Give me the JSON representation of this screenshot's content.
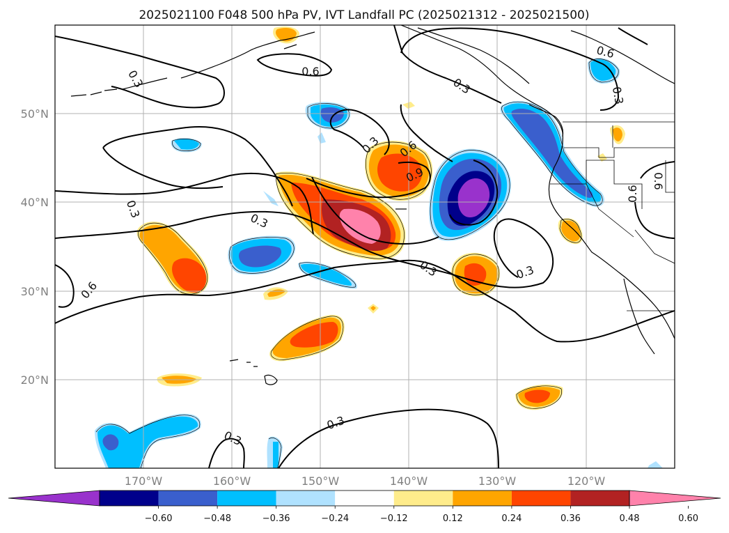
{
  "title": "2025021100 F048 500 hPa PV, IVT Landfall PC (2025021312 - 2025021500)",
  "lat_labels": [
    "50°N",
    "40°N",
    "30°N",
    "20°N"
  ],
  "lon_labels": [
    "170°W",
    "160°W",
    "150°W",
    "140°W",
    "130°W",
    "120°W"
  ],
  "contour_labels": [
    "0.3",
    "0.3",
    "0.3",
    "0.3",
    "0.3",
    "0.3",
    "0.3",
    "0.3",
    "0.3",
    "0.3",
    "0.6",
    "0.6",
    "0.6",
    "0.6",
    "0.6",
    "0.6",
    "0.9"
  ],
  "colorbar": {
    "ticks": [
      "−0.60",
      "−0.48",
      "−0.36",
      "−0.24",
      "−0.12",
      "0.12",
      "0.24",
      "0.36",
      "0.48",
      "0.60"
    ],
    "colors": [
      "#9932cc",
      "#00008b",
      "#3a5fcd",
      "#00bfff",
      "#b0e2ff",
      "#ffffff",
      "#ffec8b",
      "#ffa500",
      "#ff4500",
      "#b22222",
      "#ff82ab"
    ]
  }
}
